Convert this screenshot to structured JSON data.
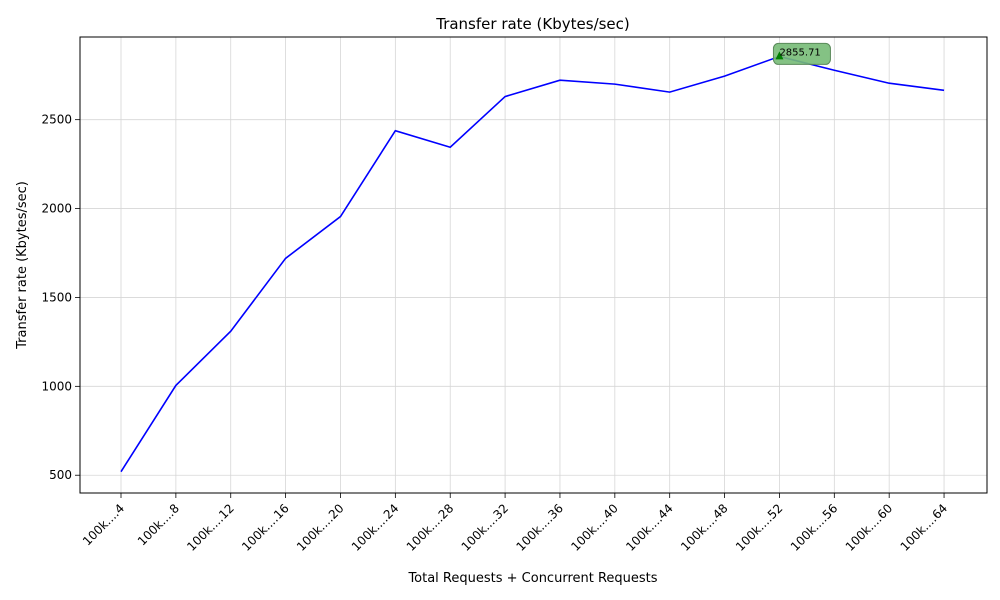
{
  "chart_data": {
    "type": "line",
    "title": "Transfer rate (Kbytes/sec)",
    "xlabel": "Total Requests + Concurrent Requests",
    "ylabel": "Transfer rate (Kbytes/sec)",
    "categories": [
      "100k....4",
      "100k....8",
      "100k....12",
      "100k....16",
      "100k....20",
      "100k....24",
      "100k....28",
      "100k....32",
      "100k....36",
      "100k....40",
      "100k....44",
      "100k....48",
      "100k....52",
      "100k....56",
      "100k....60",
      "100k....64"
    ],
    "series": [
      {
        "values": [
          520,
          1005,
          1310,
          1720,
          1955,
          2438,
          2345,
          2630,
          2722,
          2700,
          2655,
          2745,
          2855.71,
          2778,
          2705,
          2665
        ]
      }
    ],
    "yticks": [
      500,
      1000,
      1500,
      2000,
      2500
    ],
    "ylim": [
      400,
      2965
    ],
    "grid": true,
    "line_color": "#0000ff",
    "annotation": {
      "category": "100k....52",
      "value": 2855.71,
      "text": "2855.71",
      "box_color": "#77bb77",
      "marker_color": "#008000"
    }
  }
}
